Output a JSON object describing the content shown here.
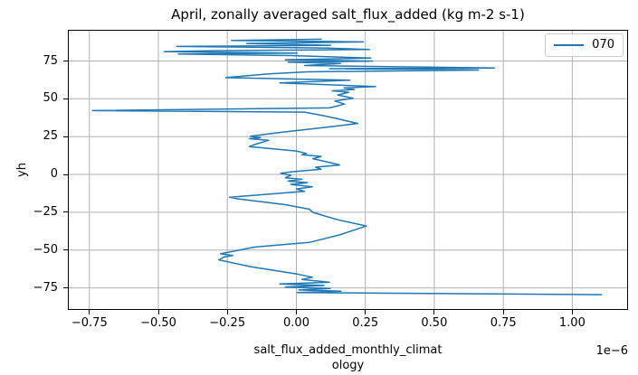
{
  "title": "April, zonally averaged salt_flux_added (kg m-2 s-1)",
  "axes": {
    "xlabel_line1": "salt_flux_added_monthly_climat",
    "xlabel_line2": "ology",
    "ylabel": "yh",
    "offset_text": "1e−6",
    "x_tick_labels": [
      "−0.75",
      "−0.50",
      "−0.25",
      "0.00",
      "0.25",
      "0.50",
      "0.75",
      "1.00"
    ],
    "y_tick_labels": [
      "75",
      "50",
      "25",
      "0",
      "−25",
      "−50",
      "−75"
    ]
  },
  "legend": {
    "entries": [
      {
        "label": "070",
        "color": "#1f77b4"
      }
    ]
  },
  "colors": {
    "line": "#1f77b4",
    "grid": "#b0b0b0",
    "spine": "#000000",
    "legend_border": "#cccccc",
    "background": "#ffffff"
  },
  "chart_data": {
    "type": "line",
    "title": "April, zonally averaged salt_flux_added (kg m-2 s-1)",
    "xlabel": "salt_flux_added_monthly_climatology",
    "ylabel": "yh",
    "x_scale_factor": "1e-6",
    "xlim": [
      -0.828,
      1.202
    ],
    "ylim": [
      -89.6,
      95.6
    ],
    "x_tick_values": [
      -0.75,
      -0.5,
      -0.25,
      0.0,
      0.25,
      0.5,
      0.75,
      1.0
    ],
    "y_tick_values": [
      75,
      50,
      25,
      0,
      -25,
      -50,
      -75
    ],
    "grid": true,
    "legend_position": "upper right",
    "orientation": "x_is_value_y_is_coordinate",
    "series": [
      {
        "name": "070",
        "color": "#1f77b4",
        "points": [
          [
            0.09,
            89.4
          ],
          [
            -0.235,
            88.6
          ],
          [
            0.243,
            87.6
          ],
          [
            -0.18,
            86.6
          ],
          [
            0.124,
            85.4
          ],
          [
            -0.433,
            84.6
          ],
          [
            0.1,
            83.6
          ],
          [
            0.265,
            82.6
          ],
          [
            -0.3,
            81.8
          ],
          [
            -0.479,
            81.2
          ],
          [
            0.003,
            80.2
          ],
          [
            -0.428,
            79.6
          ],
          [
            -0.02,
            78.6
          ],
          [
            0.27,
            76.9
          ],
          [
            -0.04,
            75.8
          ],
          [
            0.276,
            74.9
          ],
          [
            -0.03,
            74.2
          ],
          [
            0.16,
            73.4
          ],
          [
            0.03,
            72.0
          ],
          [
            0.718,
            70.3
          ],
          [
            0.12,
            69.9
          ],
          [
            0.66,
            69.0
          ],
          [
            0.04,
            67.8
          ],
          [
            -0.1,
            66.5
          ],
          [
            -0.255,
            64.0
          ],
          [
            0.194,
            62.3
          ],
          [
            -0.06,
            60.5
          ],
          [
            0.287,
            58.1
          ],
          [
            0.173,
            57.2
          ],
          [
            0.21,
            56.2
          ],
          [
            0.13,
            55.3
          ],
          [
            0.19,
            54.3
          ],
          [
            0.15,
            52.5
          ],
          [
            0.205,
            50.4
          ],
          [
            0.14,
            48.5
          ],
          [
            0.175,
            46.5
          ],
          [
            0.12,
            44.0
          ],
          [
            -0.739,
            42.2
          ],
          [
            0.03,
            41.2
          ],
          [
            0.1,
            38.8
          ],
          [
            0.15,
            36.8
          ],
          [
            0.19,
            35.0
          ],
          [
            0.222,
            33.7
          ],
          [
            0.1,
            31.0
          ],
          [
            -0.05,
            28.0
          ],
          [
            -0.167,
            25.3
          ],
          [
            -0.13,
            24.4
          ],
          [
            -0.17,
            23.6
          ],
          [
            -0.1,
            22.6
          ],
          [
            -0.155,
            19.5
          ],
          [
            -0.17,
            18.4
          ],
          [
            0.0,
            15.5
          ],
          [
            0.036,
            13.9
          ],
          [
            0.02,
            13.0
          ],
          [
            0.09,
            11.9
          ],
          [
            0.06,
            10.4
          ],
          [
            0.123,
            7.8
          ],
          [
            0.157,
            6.2
          ],
          [
            0.07,
            4.8
          ],
          [
            0.09,
            3.4
          ],
          [
            -0.02,
            1.6
          ],
          [
            -0.057,
            0.7
          ],
          [
            -0.02,
            -0.6
          ],
          [
            -0.04,
            -2.2
          ],
          [
            0.02,
            -3.2
          ],
          [
            -0.03,
            -4.4
          ],
          [
            0.04,
            -5.4
          ],
          [
            -0.02,
            -6.6
          ],
          [
            0.058,
            -8.2
          ],
          [
            0.0,
            -9.6
          ],
          [
            0.03,
            -11.2
          ],
          [
            -0.242,
            -15.1
          ],
          [
            -0.21,
            -16.2
          ],
          [
            -0.04,
            -20.0
          ],
          [
            0.047,
            -23.0
          ],
          [
            0.06,
            -25.1
          ],
          [
            0.096,
            -27.1
          ],
          [
            0.15,
            -30.0
          ],
          [
            0.254,
            -34.1
          ],
          [
            0.156,
            -40.0
          ],
          [
            0.047,
            -45.0
          ],
          [
            -0.15,
            -48.0
          ],
          [
            -0.275,
            -52.5
          ],
          [
            -0.23,
            -53.6
          ],
          [
            -0.262,
            -54.6
          ],
          [
            -0.281,
            -56.5
          ],
          [
            -0.166,
            -61.0
          ],
          [
            0.003,
            -65.9
          ],
          [
            0.058,
            -68.0
          ],
          [
            0.02,
            -69.4
          ],
          [
            0.12,
            -71.3
          ],
          [
            -0.06,
            -72.4
          ],
          [
            0.1,
            -73.4
          ],
          [
            -0.04,
            -74.4
          ],
          [
            0.123,
            -75.4
          ],
          [
            0.009,
            -76.4
          ],
          [
            0.162,
            -77.2
          ],
          [
            0.003,
            -78.1
          ],
          [
            1.106,
            -79.5
          ]
        ]
      }
    ]
  }
}
